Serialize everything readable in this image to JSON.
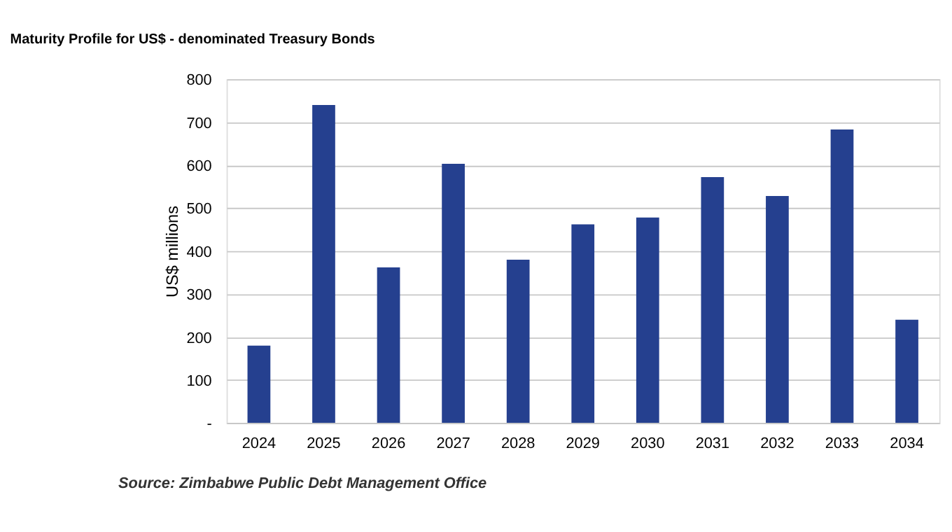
{
  "chart_data": {
    "type": "bar",
    "title": "Maturity Profile for US$ - denominated Treasury Bonds",
    "ylabel": "US$ millions",
    "categories": [
      "2024",
      "2025",
      "2026",
      "2027",
      "2028",
      "2029",
      "2030",
      "2031",
      "2032",
      "2033",
      "2034"
    ],
    "values": [
      180,
      740,
      362,
      603,
      380,
      462,
      478,
      572,
      528,
      683,
      240
    ],
    "color": "#25408f",
    "ylim": [
      0,
      800
    ],
    "yticks": [
      {
        "value": 0,
        "label": "-"
      },
      100,
      200,
      300,
      400,
      500,
      600,
      700,
      800
    ],
    "grid": "y",
    "annotations": [
      "Source: Zimbabwe Public Debt Management Office"
    ]
  }
}
